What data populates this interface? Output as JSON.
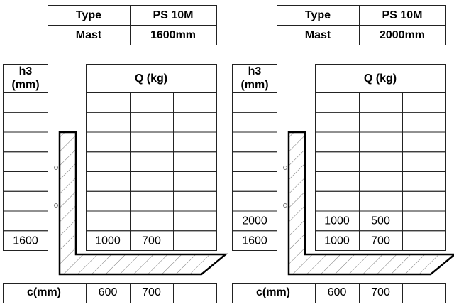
{
  "panels": [
    {
      "spec": {
        "rows": [
          [
            "Type",
            "PS 10M"
          ],
          [
            "Mast",
            "1600mm"
          ]
        ]
      },
      "h3_header": [
        "h3",
        "(mm)"
      ],
      "q_header": "Q (kg)",
      "load_rows": [
        {
          "h3": "1600",
          "q": [
            "1000",
            "700"
          ]
        }
      ],
      "c_row": {
        "label": "c(mm)",
        "values": [
          "600",
          "700"
        ]
      }
    },
    {
      "spec": {
        "rows": [
          [
            "Type",
            "PS 10M"
          ],
          [
            "Mast",
            "2000mm"
          ]
        ]
      },
      "h3_header": [
        "h3",
        "(mm)"
      ],
      "q_header": "Q (kg)",
      "load_rows": [
        {
          "h3": "2000",
          "q": [
            "1000",
            "500"
          ]
        },
        {
          "h3": "1600",
          "q": [
            "1000",
            "700"
          ]
        }
      ],
      "c_row": {
        "label": "c(mm)",
        "values": [
          "600",
          "700"
        ]
      }
    }
  ]
}
